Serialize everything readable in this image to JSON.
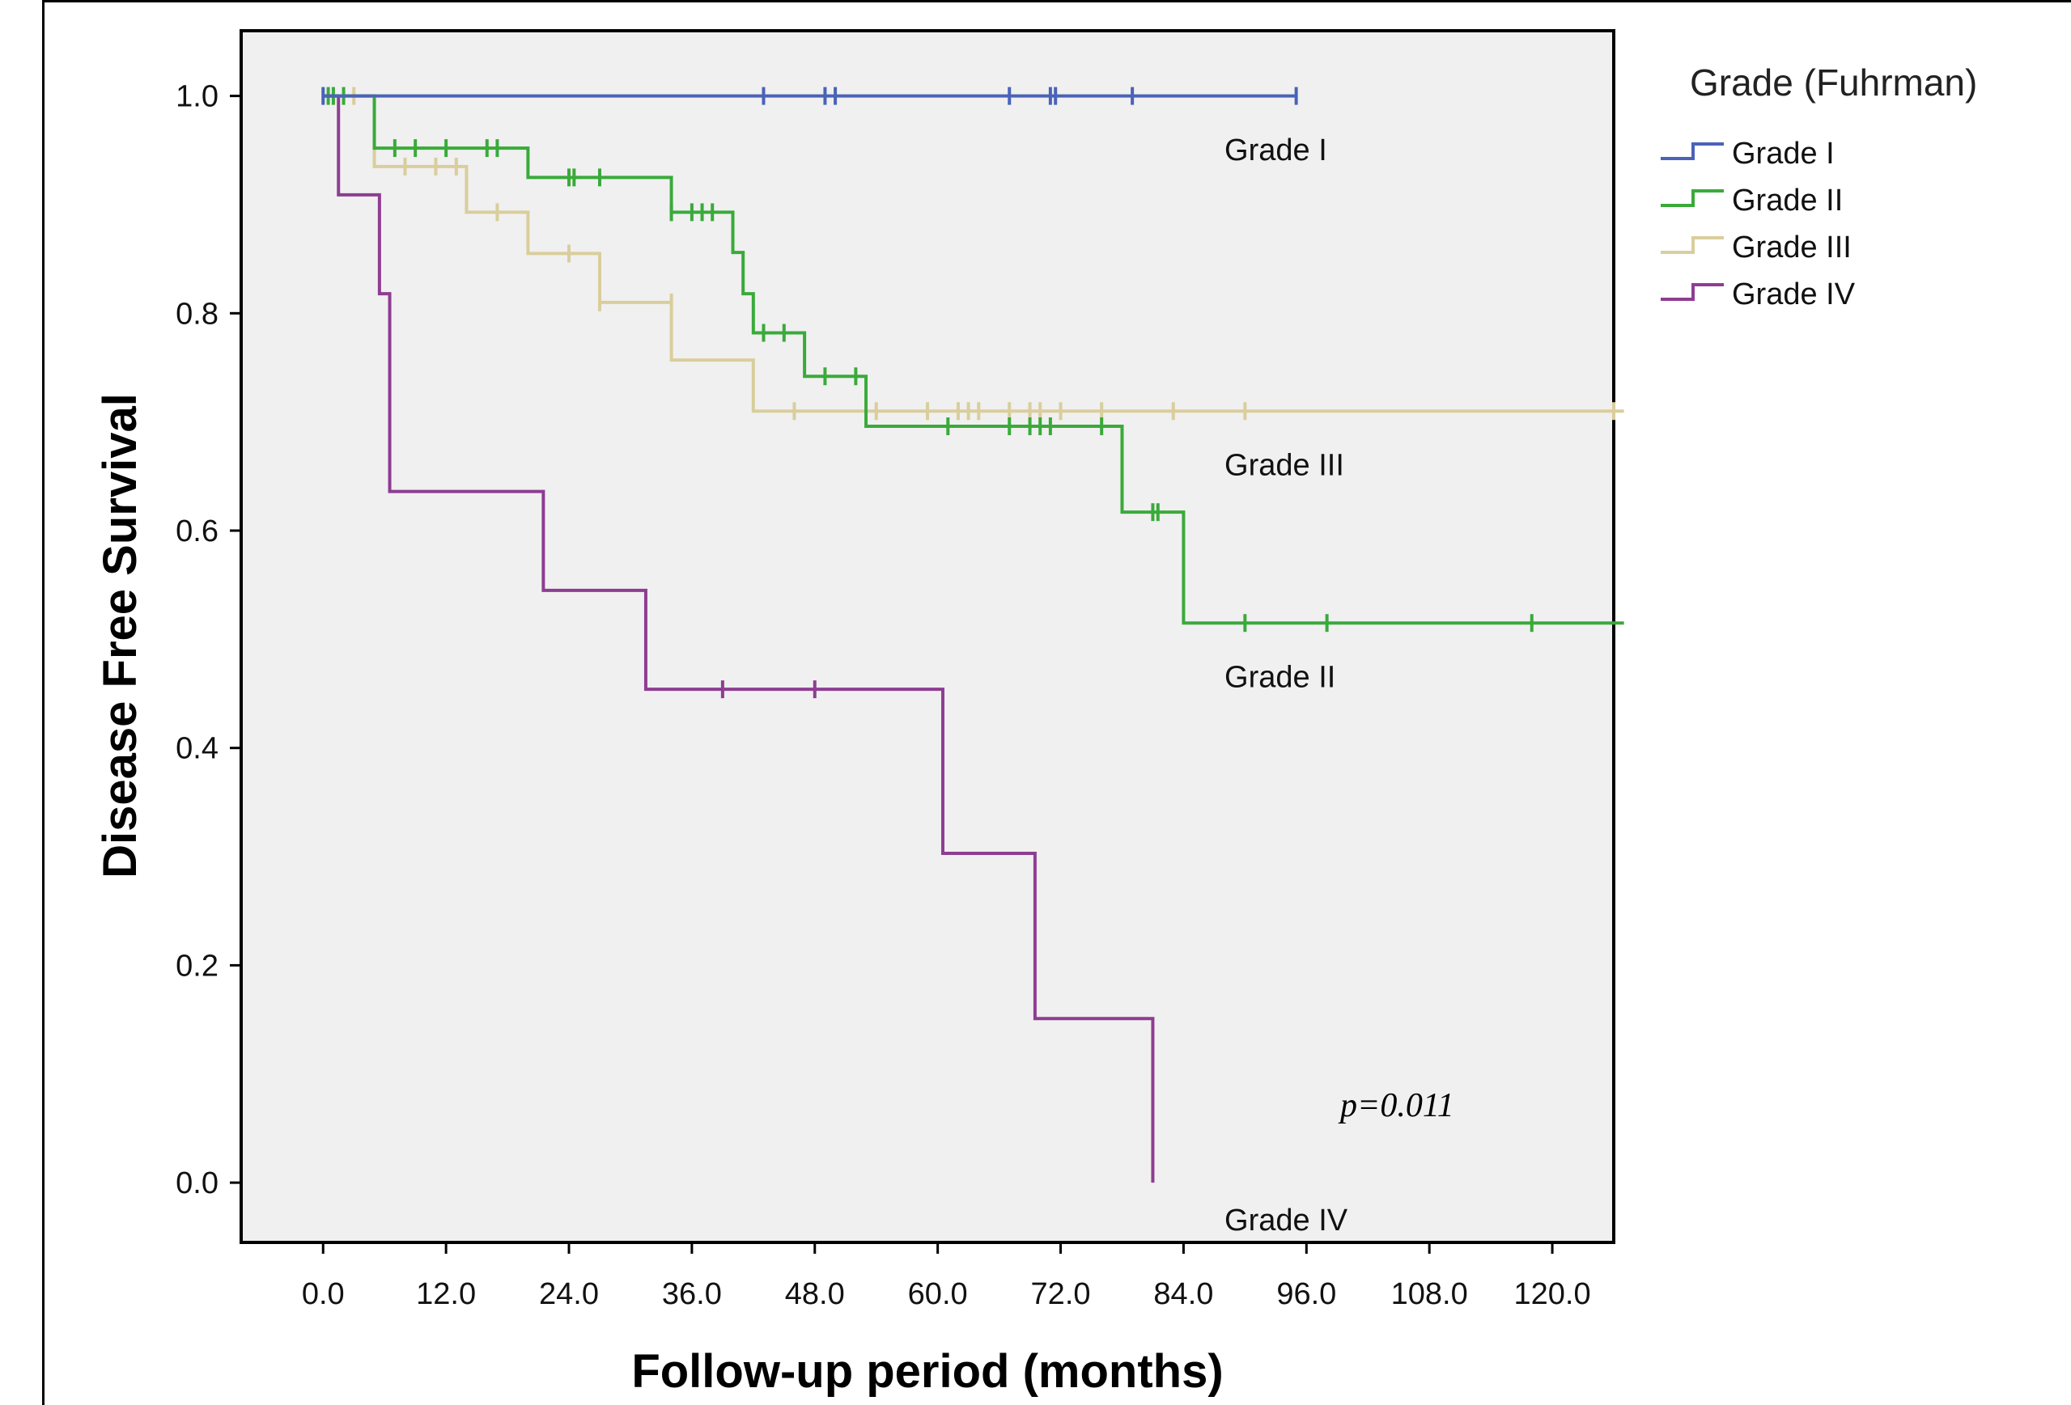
{
  "chart_data": {
    "type": "line",
    "xlabel": "Follow-up period (months)",
    "ylabel": "Disease Free Survival",
    "xlim": [
      -8,
      126
    ],
    "ylim": [
      -0.055,
      1.06
    ],
    "xticks": [
      0,
      12,
      24,
      36,
      48,
      60,
      72,
      84,
      96,
      108,
      120
    ],
    "xtick_labels": [
      "0.0",
      "12.0",
      "24.0",
      "36.0",
      "48.0",
      "60.0",
      "72.0",
      "84.0",
      "96.0",
      "108.0",
      "120.0"
    ],
    "yticks": [
      0,
      0.2,
      0.4,
      0.6,
      0.8,
      1.0
    ],
    "ytick_labels": [
      "0.0",
      "0.2",
      "0.4",
      "0.6",
      "0.8",
      "1.0"
    ],
    "legend": {
      "title": "Grade (Fuhrman)",
      "position": "right"
    },
    "annotation": "p=0.011",
    "series": [
      {
        "name": "Grade I",
        "label": "Grade I",
        "color": "#4a63b8",
        "steps": [
          [
            0,
            1.0
          ],
          [
            95,
            1.0
          ]
        ],
        "censored": [
          [
            0,
            1.0
          ],
          [
            43,
            1.0
          ],
          [
            49,
            1.0
          ],
          [
            50,
            1.0
          ],
          [
            67,
            1.0
          ],
          [
            71,
            1.0
          ],
          [
            71.5,
            1.0
          ],
          [
            79,
            1.0
          ],
          [
            95,
            1.0
          ]
        ]
      },
      {
        "name": "Grade II",
        "label": "Grade II",
        "color": "#3aaa3a",
        "steps": [
          [
            0,
            1.0
          ],
          [
            5,
            0.952
          ],
          [
            20,
            0.925
          ],
          [
            34,
            0.893
          ],
          [
            40,
            0.856
          ],
          [
            41,
            0.818
          ],
          [
            42,
            0.782
          ],
          [
            47,
            0.742
          ],
          [
            53,
            0.696
          ],
          [
            78,
            0.617
          ],
          [
            84,
            0.515
          ],
          [
            127,
            0.515
          ]
        ],
        "censored": [
          [
            0.5,
            1.0
          ],
          [
            1,
            1.0
          ],
          [
            2,
            1.0
          ],
          [
            7,
            0.952
          ],
          [
            9,
            0.952
          ],
          [
            12,
            0.952
          ],
          [
            16,
            0.952
          ],
          [
            17,
            0.952
          ],
          [
            24,
            0.925
          ],
          [
            24.5,
            0.925
          ],
          [
            27,
            0.925
          ],
          [
            34,
            0.893
          ],
          [
            36,
            0.893
          ],
          [
            37,
            0.893
          ],
          [
            38,
            0.893
          ],
          [
            43,
            0.782
          ],
          [
            45,
            0.782
          ],
          [
            49,
            0.742
          ],
          [
            52,
            0.742
          ],
          [
            61,
            0.696
          ],
          [
            67,
            0.696
          ],
          [
            69,
            0.696
          ],
          [
            70,
            0.696
          ],
          [
            71,
            0.696
          ],
          [
            76,
            0.696
          ],
          [
            81,
            0.617
          ],
          [
            81.5,
            0.617
          ],
          [
            90,
            0.515
          ],
          [
            98,
            0.515
          ],
          [
            118,
            0.515
          ]
        ]
      },
      {
        "name": "Grade III",
        "label": "Grade III",
        "color": "#d9ce9c",
        "steps": [
          [
            0,
            1.0
          ],
          [
            5,
            0.935
          ],
          [
            14,
            0.893
          ],
          [
            20,
            0.855
          ],
          [
            27,
            0.81
          ],
          [
            34,
            0.757
          ],
          [
            42,
            0.71
          ],
          [
            127,
            0.71
          ]
        ],
        "censored": [
          [
            3,
            1.0
          ],
          [
            8,
            0.935
          ],
          [
            11,
            0.935
          ],
          [
            13,
            0.935
          ],
          [
            17,
            0.893
          ],
          [
            24,
            0.855
          ],
          [
            27,
            0.81
          ],
          [
            34,
            0.81
          ],
          [
            46,
            0.71
          ],
          [
            54,
            0.71
          ],
          [
            59,
            0.71
          ],
          [
            62,
            0.71
          ],
          [
            63,
            0.71
          ],
          [
            64,
            0.71
          ],
          [
            67,
            0.71
          ],
          [
            69,
            0.71
          ],
          [
            70,
            0.71
          ],
          [
            72,
            0.71
          ],
          [
            76,
            0.71
          ],
          [
            83,
            0.71
          ],
          [
            90,
            0.71
          ],
          [
            126,
            0.71
          ]
        ]
      },
      {
        "name": "Grade IV",
        "label": "Grade IV",
        "color": "#8e3d92",
        "steps": [
          [
            0,
            1.0
          ],
          [
            1.5,
            0.909
          ],
          [
            5.5,
            0.818
          ],
          [
            6.5,
            0.636
          ],
          [
            21.5,
            0.545
          ],
          [
            31.5,
            0.454
          ],
          [
            60.5,
            0.303
          ],
          [
            69.5,
            0.151
          ],
          [
            81,
            0.0
          ]
        ],
        "censored": [
          [
            39,
            0.454
          ],
          [
            48,
            0.454
          ]
        ]
      }
    ]
  }
}
